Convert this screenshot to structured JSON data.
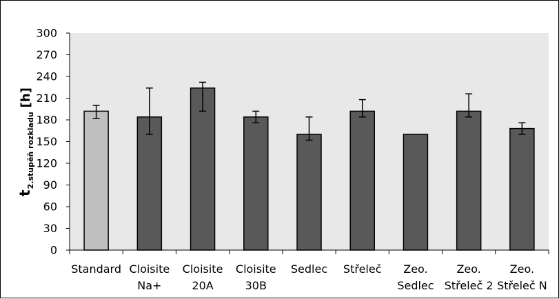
{
  "chart_data": {
    "type": "bar",
    "categories": [
      [
        "Standard"
      ],
      [
        "Cloisite",
        "Na+"
      ],
      [
        "Cloisite",
        "20A"
      ],
      [
        "Cloisite",
        "30B"
      ],
      [
        "Sedlec"
      ],
      [
        "Střeleč"
      ],
      [
        "Zeo.",
        "Sedlec"
      ],
      [
        "Zeo.",
        "Střeleč 2"
      ],
      [
        "Zeo.",
        "Střeleč N"
      ]
    ],
    "values": [
      192,
      184,
      224,
      184,
      160,
      192,
      160,
      192,
      168
    ],
    "error_low": [
      182,
      160,
      192,
      176,
      152,
      184,
      160,
      184,
      160
    ],
    "error_high": [
      200,
      224,
      232,
      192,
      184,
      208,
      160,
      216,
      176
    ],
    "ylabel_main": "t",
    "ylabel_sub": "2.stupěň rozkladu",
    "ylabel_unit": "[h]",
    "ylim": [
      0,
      300
    ],
    "yticks": [
      "0",
      "30",
      "60",
      "90",
      "120",
      "150",
      "180",
      "210",
      "240",
      "270",
      "300"
    ],
    "grid": false,
    "legend": "none",
    "colors": {
      "plot_background": "#e8e8e8",
      "first_bar": "#c0c0c0",
      "other_bars": "#595959",
      "outline": "#000000"
    }
  }
}
